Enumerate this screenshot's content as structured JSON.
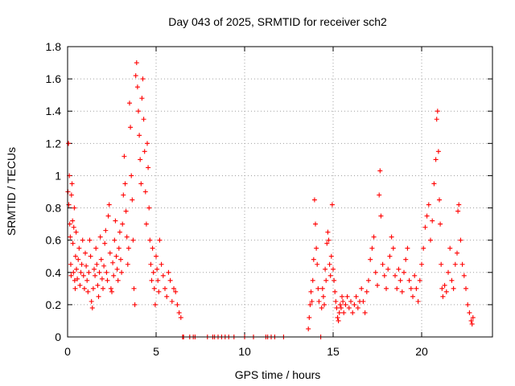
{
  "chart_data": {
    "type": "scatter",
    "title": "Day 043 of 2025, SRMTID for receiver sch2",
    "xlabel": "GPS time / hours",
    "ylabel": "SRMTID / TECUs",
    "xlim": [
      0,
      24
    ],
    "ylim": [
      0,
      1.8
    ],
    "xticks": [
      0,
      5,
      10,
      15,
      20
    ],
    "xtick_labels": [
      "0",
      "5",
      "10",
      "15",
      "20"
    ],
    "yticks": [
      0,
      0.2,
      0.4,
      0.6,
      0.8,
      1.0,
      1.2,
      1.4,
      1.6,
      1.8
    ],
    "ytick_labels": [
      "0",
      "0.2",
      "0.4",
      "0.6",
      "0.8",
      "1",
      "1.2",
      "1.4",
      "1.6",
      "1.8"
    ],
    "grid": true,
    "marker": "+",
    "series": [
      {
        "name": "sch2",
        "color": "#ff0000",
        "points": [
          [
            0.02,
            0.9
          ],
          [
            0.05,
            1.2
          ],
          [
            0.07,
            0.82
          ],
          [
            0.1,
            1.0
          ],
          [
            0.12,
            0.7
          ],
          [
            0.15,
            0.62
          ],
          [
            0.18,
            0.45
          ],
          [
            0.2,
            0.38
          ],
          [
            0.22,
            0.88
          ],
          [
            0.25,
            0.95
          ],
          [
            0.28,
            0.72
          ],
          [
            0.3,
            0.58
          ],
          [
            0.33,
            0.4
          ],
          [
            0.35,
            0.68
          ],
          [
            0.38,
            0.8
          ],
          [
            0.4,
            0.35
          ],
          [
            0.43,
            0.3
          ],
          [
            0.45,
            0.5
          ],
          [
            0.48,
            0.65
          ],
          [
            0.5,
            0.42
          ],
          [
            0.55,
            0.36
          ],
          [
            0.6,
            0.48
          ],
          [
            0.65,
            0.55
          ],
          [
            0.7,
            0.32
          ],
          [
            0.75,
            0.4
          ],
          [
            0.8,
            0.45
          ],
          [
            0.85,
            0.6
          ],
          [
            0.9,
            0.38
          ],
          [
            0.95,
            0.3
          ],
          [
            1.0,
            0.52
          ],
          [
            1.05,
            0.44
          ],
          [
            1.1,
            0.35
          ],
          [
            1.15,
            0.28
          ],
          [
            1.2,
            0.4
          ],
          [
            1.25,
            0.6
          ],
          [
            1.3,
            0.5
          ],
          [
            1.35,
            0.22
          ],
          [
            1.4,
            0.18
          ],
          [
            1.45,
            0.3
          ],
          [
            1.5,
            0.42
          ],
          [
            1.55,
            0.38
          ],
          [
            1.6,
            0.55
          ],
          [
            1.65,
            0.45
          ],
          [
            1.7,
            0.32
          ],
          [
            1.75,
            0.25
          ],
          [
            1.8,
            0.4
          ],
          [
            1.85,
            0.62
          ],
          [
            1.9,
            0.48
          ],
          [
            1.95,
            0.36
          ],
          [
            2.0,
            0.3
          ],
          [
            2.05,
            0.44
          ],
          [
            2.1,
            0.58
          ],
          [
            2.15,
            0.66
          ],
          [
            2.2,
            0.4
          ],
          [
            2.25,
            0.35
          ],
          [
            2.3,
            0.75
          ],
          [
            2.35,
            0.82
          ],
          [
            2.4,
            0.52
          ],
          [
            2.45,
            0.3
          ],
          [
            2.5,
            0.28
          ],
          [
            2.55,
            0.46
          ],
          [
            2.6,
            0.38
          ],
          [
            2.65,
            0.6
          ],
          [
            2.7,
            0.72
          ],
          [
            2.75,
            0.5
          ],
          [
            2.8,
            0.42
          ],
          [
            2.85,
            0.35
          ],
          [
            2.9,
            0.55
          ],
          [
            2.95,
            0.65
          ],
          [
            3.0,
            0.48
          ],
          [
            3.05,
            0.4
          ],
          [
            3.1,
            0.7
          ],
          [
            3.15,
            0.88
          ],
          [
            3.2,
            1.12
          ],
          [
            3.25,
            0.95
          ],
          [
            3.3,
            0.78
          ],
          [
            3.35,
            0.62
          ],
          [
            3.4,
            0.45
          ],
          [
            3.45,
            0.55
          ],
          [
            3.5,
            1.45
          ],
          [
            3.55,
            1.3
          ],
          [
            3.6,
            1.0
          ],
          [
            3.65,
            0.85
          ],
          [
            3.7,
            0.6
          ],
          [
            3.75,
            0.3
          ],
          [
            3.8,
            0.2
          ],
          [
            3.85,
            1.62
          ],
          [
            3.9,
            1.7
          ],
          [
            3.95,
            1.55
          ],
          [
            4.0,
            1.4
          ],
          [
            4.05,
            1.25
          ],
          [
            4.1,
            1.1
          ],
          [
            4.15,
            0.95
          ],
          [
            4.2,
            1.48
          ],
          [
            4.25,
            1.6
          ],
          [
            4.3,
            1.35
          ],
          [
            4.35,
            1.15
          ],
          [
            4.4,
            0.9
          ],
          [
            4.45,
            0.7
          ],
          [
            4.5,
            1.2
          ],
          [
            4.55,
            1.05
          ],
          [
            4.6,
            0.8
          ],
          [
            4.65,
            0.6
          ],
          [
            4.7,
            0.45
          ],
          [
            4.75,
            0.35
          ],
          [
            4.8,
            0.55
          ],
          [
            4.85,
            0.4
          ],
          [
            4.9,
            0.3
          ],
          [
            4.95,
            0.2
          ],
          [
            5.0,
            0.5
          ],
          [
            5.05,
            0.42
          ],
          [
            5.1,
            0.35
          ],
          [
            5.15,
            0.28
          ],
          [
            5.2,
            0.6
          ],
          [
            5.3,
            0.45
          ],
          [
            5.4,
            0.38
          ],
          [
            5.5,
            0.3
          ],
          [
            5.6,
            0.25
          ],
          [
            5.7,
            0.4
          ],
          [
            5.8,
            0.35
          ],
          [
            5.9,
            0.22
          ],
          [
            6.0,
            0.3
          ],
          [
            6.1,
            0.28
          ],
          [
            6.2,
            0.2
          ],
          [
            6.3,
            0.15
          ],
          [
            6.4,
            0.12
          ],
          [
            6.5,
            0.0
          ],
          [
            6.55,
            0.0
          ],
          [
            6.9,
            0.0
          ],
          [
            7.1,
            0.0
          ],
          [
            7.2,
            0.0
          ],
          [
            7.9,
            0.0
          ],
          [
            8.2,
            0.0
          ],
          [
            8.3,
            0.0
          ],
          [
            8.5,
            0.0
          ],
          [
            8.7,
            0.0
          ],
          [
            8.9,
            0.0
          ],
          [
            9.1,
            0.0
          ],
          [
            9.4,
            0.0
          ],
          [
            10.0,
            0.0
          ],
          [
            10.5,
            0.0
          ],
          [
            11.2,
            0.0
          ],
          [
            11.3,
            0.0
          ],
          [
            11.5,
            0.0
          ],
          [
            11.7,
            0.0
          ],
          [
            12.2,
            0.0
          ],
          [
            13.6,
            0.05
          ],
          [
            13.65,
            0.12
          ],
          [
            13.7,
            0.2
          ],
          [
            13.75,
            0.28
          ],
          [
            13.8,
            0.22
          ],
          [
            13.85,
            0.35
          ],
          [
            13.9,
            0.48
          ],
          [
            13.95,
            0.85
          ],
          [
            14.0,
            0.7
          ],
          [
            14.05,
            0.55
          ],
          [
            14.1,
            0.45
          ],
          [
            14.15,
            0.3
          ],
          [
            14.2,
            0.22
          ],
          [
            14.3,
            0.0
          ],
          [
            14.35,
            0.18
          ],
          [
            14.4,
            0.3
          ],
          [
            14.45,
            0.25
          ],
          [
            14.5,
            0.2
          ],
          [
            14.55,
            0.42
          ],
          [
            14.6,
            0.35
          ],
          [
            14.65,
            0.58
          ],
          [
            14.7,
            0.65
          ],
          [
            14.75,
            0.6
          ],
          [
            14.8,
            0.45
          ],
          [
            14.85,
            0.38
          ],
          [
            14.9,
            0.5
          ],
          [
            14.95,
            0.82
          ],
          [
            15.0,
            0.42
          ],
          [
            15.05,
            0.35
          ],
          [
            15.1,
            0.28
          ],
          [
            15.15,
            0.22
          ],
          [
            15.2,
            0.18
          ],
          [
            15.25,
            0.12
          ],
          [
            15.3,
            0.1
          ],
          [
            15.35,
            0.15
          ],
          [
            15.4,
            0.2
          ],
          [
            15.45,
            0.18
          ],
          [
            15.5,
            0.25
          ],
          [
            15.55,
            0.22
          ],
          [
            15.6,
            0.15
          ],
          [
            15.7,
            0.2
          ],
          [
            15.8,
            0.25
          ],
          [
            15.9,
            0.18
          ],
          [
            16.0,
            0.22
          ],
          [
            16.1,
            0.15
          ],
          [
            16.2,
            0.2
          ],
          [
            16.3,
            0.25
          ],
          [
            16.4,
            0.18
          ],
          [
            16.5,
            0.22
          ],
          [
            16.6,
            0.3
          ],
          [
            16.7,
            0.22
          ],
          [
            16.8,
            0.15
          ],
          [
            16.9,
            0.28
          ],
          [
            17.0,
            0.35
          ],
          [
            17.1,
            0.48
          ],
          [
            17.2,
            0.55
          ],
          [
            17.3,
            0.62
          ],
          [
            17.4,
            0.4
          ],
          [
            17.5,
            0.32
          ],
          [
            17.6,
            0.88
          ],
          [
            17.65,
            1.03
          ],
          [
            17.7,
            0.75
          ],
          [
            17.8,
            0.45
          ],
          [
            17.9,
            0.38
          ],
          [
            18.0,
            0.3
          ],
          [
            18.1,
            0.42
          ],
          [
            18.2,
            0.5
          ],
          [
            18.3,
            0.62
          ],
          [
            18.4,
            0.55
          ],
          [
            18.5,
            0.38
          ],
          [
            18.6,
            0.3
          ],
          [
            18.7,
            0.42
          ],
          [
            18.8,
            0.35
          ],
          [
            18.9,
            0.28
          ],
          [
            19.0,
            0.4
          ],
          [
            19.1,
            0.48
          ],
          [
            19.2,
            0.55
          ],
          [
            19.3,
            0.35
          ],
          [
            19.4,
            0.3
          ],
          [
            19.5,
            0.25
          ],
          [
            19.6,
            0.38
          ],
          [
            19.7,
            0.3
          ],
          [
            19.8,
            0.22
          ],
          [
            19.9,
            0.35
          ],
          [
            20.0,
            0.45
          ],
          [
            20.1,
            0.55
          ],
          [
            20.2,
            0.68
          ],
          [
            20.3,
            0.75
          ],
          [
            20.4,
            0.82
          ],
          [
            20.5,
            0.6
          ],
          [
            20.6,
            0.72
          ],
          [
            20.7,
            0.95
          ],
          [
            20.8,
            1.1
          ],
          [
            20.85,
            1.35
          ],
          [
            20.9,
            1.4
          ],
          [
            20.95,
            1.15
          ],
          [
            21.0,
            0.85
          ],
          [
            21.05,
            0.7
          ],
          [
            21.1,
            0.45
          ],
          [
            21.15,
            0.3
          ],
          [
            21.2,
            0.25
          ],
          [
            21.3,
            0.32
          ],
          [
            21.4,
            0.28
          ],
          [
            21.5,
            0.4
          ],
          [
            21.6,
            0.55
          ],
          [
            21.7,
            0.35
          ],
          [
            21.8,
            0.3
          ],
          [
            21.9,
            0.45
          ],
          [
            22.0,
            0.52
          ],
          [
            22.05,
            0.78
          ],
          [
            22.1,
            0.82
          ],
          [
            22.2,
            0.6
          ],
          [
            22.3,
            0.45
          ],
          [
            22.4,
            0.38
          ],
          [
            22.5,
            0.3
          ],
          [
            22.6,
            0.2
          ],
          [
            22.7,
            0.15
          ],
          [
            22.8,
            0.1
          ],
          [
            22.85,
            0.08
          ],
          [
            22.9,
            0.12
          ]
        ]
      }
    ]
  }
}
